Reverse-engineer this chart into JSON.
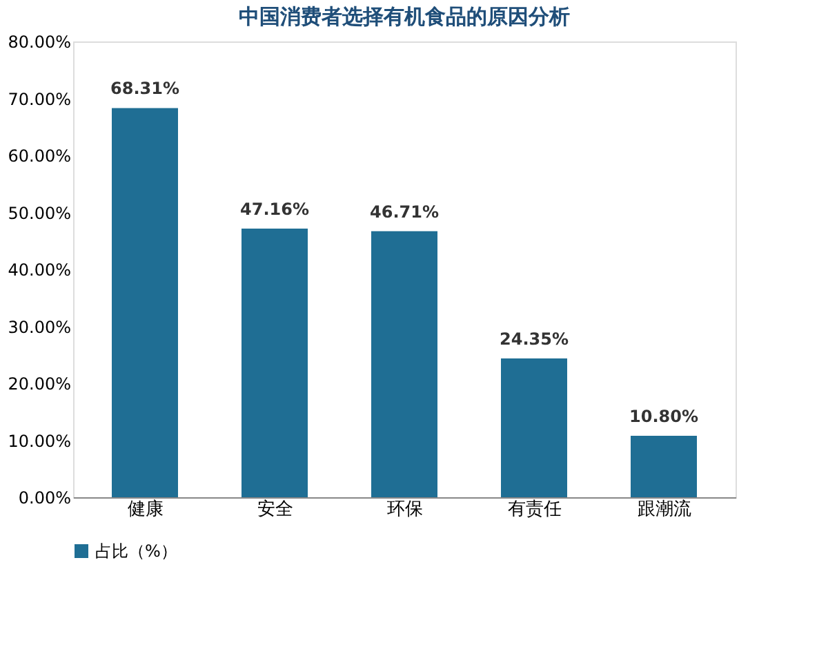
{
  "chart_data": {
    "type": "bar",
    "title": "中国消费者选择有机食品的原因分析",
    "categories": [
      "健康",
      "安全",
      "环保",
      "有责任",
      "跟潮流"
    ],
    "series": [
      {
        "name": "占比（%）",
        "color": "#1f6e94",
        "values": [
          68.31,
          47.16,
          46.71,
          24.35,
          10.8
        ],
        "value_labels": [
          "68.31%",
          "47.16%",
          "46.71%",
          "24.35%",
          "10.80%"
        ]
      }
    ],
    "ylim": [
      0,
      80
    ],
    "yticks": [
      {
        "value": 0,
        "label": "0.00%"
      },
      {
        "value": 10,
        "label": "10.00%"
      },
      {
        "value": 20,
        "label": "20.00%"
      },
      {
        "value": 30,
        "label": "30.00%"
      },
      {
        "value": 40,
        "label": "40.00%"
      },
      {
        "value": 50,
        "label": "50.00%"
      },
      {
        "value": 60,
        "label": "60.00%"
      },
      {
        "value": 70,
        "label": "70.00%"
      },
      {
        "value": 80,
        "label": "80.00%"
      }
    ],
    "grid": false,
    "legend": "bottom"
  }
}
